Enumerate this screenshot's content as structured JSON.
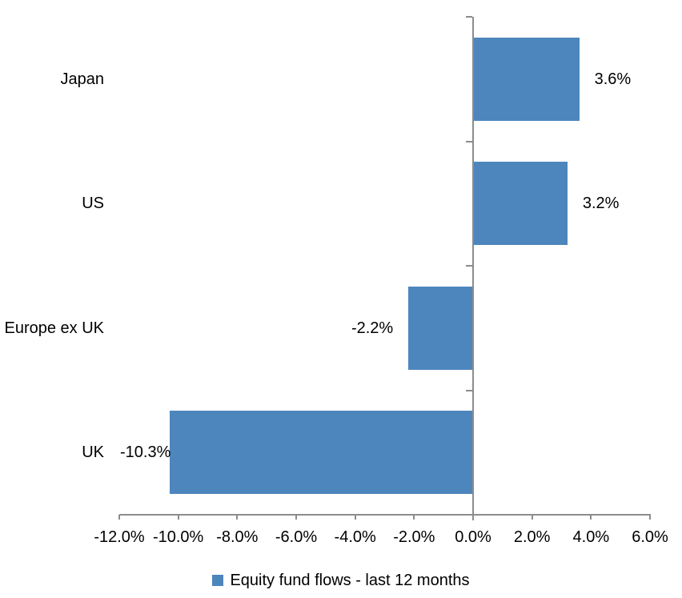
{
  "chart_data": {
    "type": "bar",
    "orientation": "horizontal",
    "categories": [
      "Japan",
      "US",
      "Europe ex UK",
      "UK"
    ],
    "series": [
      {
        "name": "Equity fund flows - last 12 months",
        "values": [
          3.6,
          3.2,
          -2.2,
          -10.3
        ]
      }
    ],
    "data_labels": [
      "3.6%",
      "3.2%",
      "-2.2%",
      "-10.3%"
    ],
    "xlim": [
      -12,
      6
    ],
    "x_tick_step": 2,
    "x_tick_labels": [
      "-12.0%",
      "-10.0%",
      "-8.0%",
      "-6.0%",
      "-4.0%",
      "-2.0%",
      "0.0%",
      "2.0%",
      "4.0%",
      "6.0%"
    ],
    "grid": false,
    "legend": {
      "label": "Equity fund flows - last 12 months",
      "position": "bottom-center"
    },
    "colors": {
      "bar": "#4D86BD",
      "axis": "#8C8C8C",
      "text": "#000000"
    }
  }
}
